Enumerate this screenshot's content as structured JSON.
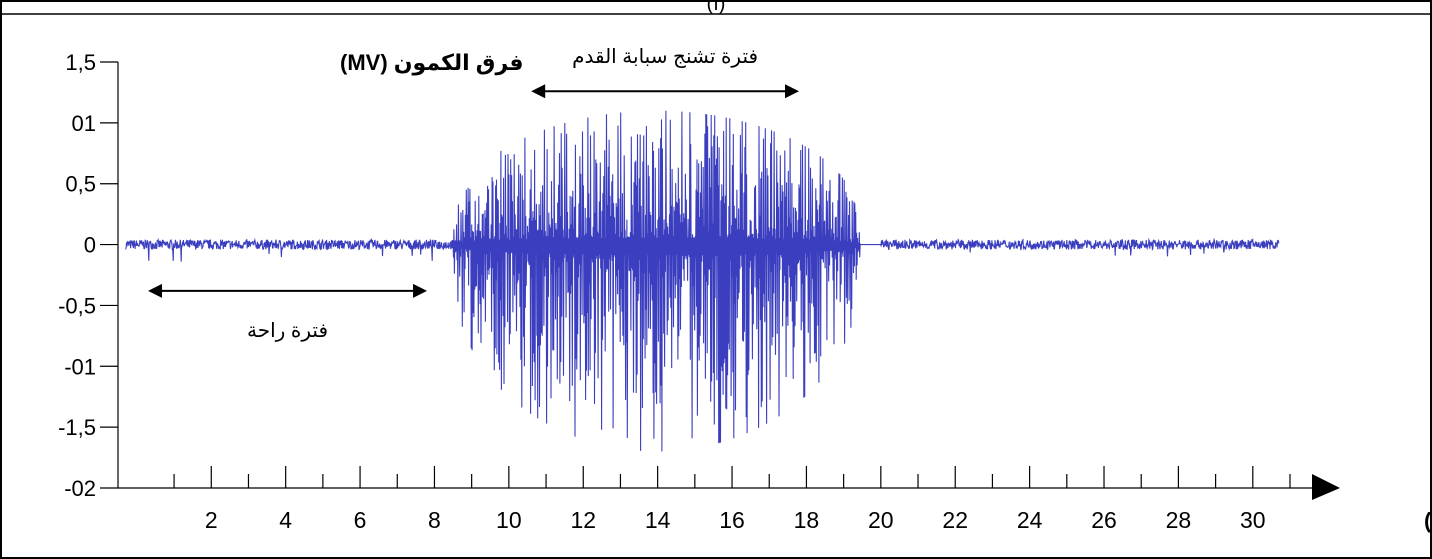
{
  "chart_data": {
    "type": "line",
    "top_caption": "(أ)",
    "ylabel": "فرق الكمون (MV)",
    "xlabel": "الزمن (S)",
    "y_ticks": [
      {
        "value": 1.5,
        "label": "1,5"
      },
      {
        "value": 1.0,
        "label": "01"
      },
      {
        "value": 0.5,
        "label": "0,5"
      },
      {
        "value": 0,
        "label": "0"
      },
      {
        "value": -0.5,
        "label": "-0,5"
      },
      {
        "value": -1.0,
        "label": "-01"
      },
      {
        "value": -1.5,
        "label": "-1,5"
      },
      {
        "value": -2.0,
        "label": "-02"
      }
    ],
    "x_ticks": [
      {
        "value": 2,
        "label": "2"
      },
      {
        "value": 4,
        "label": "4"
      },
      {
        "value": 6,
        "label": "6"
      },
      {
        "value": 8,
        "label": "8"
      },
      {
        "value": 10,
        "label": "10"
      },
      {
        "value": 12,
        "label": "12"
      },
      {
        "value": 14,
        "label": "14"
      },
      {
        "value": 16,
        "label": "16"
      },
      {
        "value": 18,
        "label": "18"
      },
      {
        "value": 20,
        "label": "20"
      },
      {
        "value": 22,
        "label": "22"
      },
      {
        "value": 24,
        "label": "24"
      },
      {
        "value": 26,
        "label": "26"
      },
      {
        "value": 28,
        "label": "28"
      },
      {
        "value": 30,
        "label": "30"
      }
    ],
    "xlim": [
      -0.4,
      31
    ],
    "ylim": [
      -2.0,
      1.5
    ],
    "grid": false,
    "series_color": "#3b3fbf",
    "signal": {
      "t_start": -0.3,
      "t_end": 30.7,
      "rest_amplitude": 0.04,
      "contraction_start": 8.5,
      "contraction_end": 20.0,
      "contraction_peak_max": 1.1,
      "contraction_peak_min": -1.7
    },
    "annotations": [
      {
        "text": "فترة راحة",
        "x_from": 0.3,
        "x_to": 7.8,
        "y": -0.38
      },
      {
        "text": "فترة تشنج سبابة القدم",
        "x_from": 10.6,
        "x_to": 17.8,
        "y": 1.26
      }
    ]
  }
}
